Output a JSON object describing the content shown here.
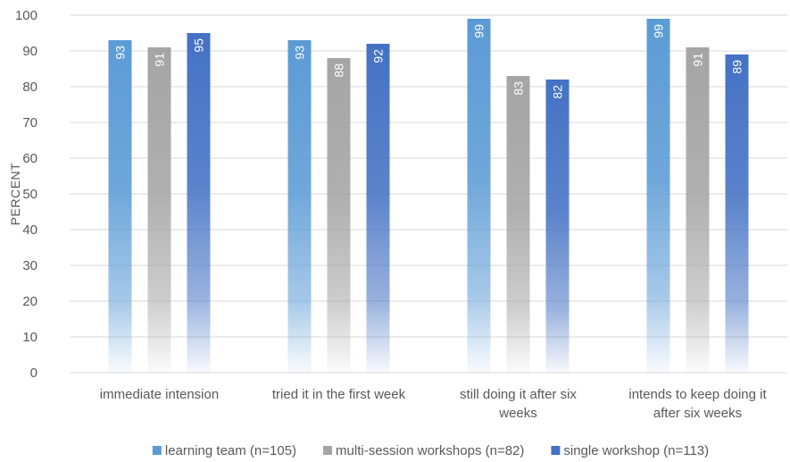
{
  "chart_data": {
    "type": "bar",
    "ylabel": "PERCENT",
    "ylim": [
      0,
      100
    ],
    "yticks": [
      0,
      10,
      20,
      30,
      40,
      50,
      60,
      70,
      80,
      90,
      100
    ],
    "grid": true,
    "legend_position": "bottom",
    "categories": [
      [
        "immediate intension"
      ],
      [
        "tried it in the first week"
      ],
      [
        "still doing it after six",
        "weeks"
      ],
      [
        "intends to keep doing it",
        "after six weeks"
      ]
    ],
    "series": [
      {
        "name": "learning team (n=105)",
        "values": [
          93,
          93,
          99,
          99
        ],
        "color": "#5b9bd5"
      },
      {
        "name": "multi-session workshops (n=82)",
        "values": [
          91,
          88,
          83,
          91
        ],
        "color": "#a5a5a5"
      },
      {
        "name": "single workshop (n=113)",
        "values": [
          95,
          92,
          82,
          89
        ],
        "color": "#4472c4"
      }
    ]
  }
}
